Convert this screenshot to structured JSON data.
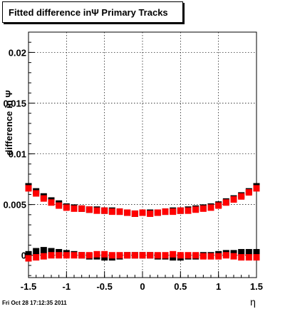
{
  "chart_data": {
    "type": "scatter",
    "title": "Fitted difference inΨ   Primary Tracks",
    "xlabel": "η",
    "ylabel": "difference in Ψ",
    "xlim": [
      -1.5,
      1.5
    ],
    "ylim": [
      -0.0022,
      0.022
    ],
    "x_ticks": [
      "-1.5",
      "-1",
      "-0.5",
      "0",
      "0.5",
      "1",
      "1.5"
    ],
    "y_ticks": [
      "0",
      "0.005",
      "0.01",
      "0.015",
      "0.02"
    ],
    "grid": true,
    "series": [
      {
        "color": "#000000",
        "points": [
          [
            -1.5,
            0.0068
          ],
          [
            -1.4,
            0.0063
          ],
          [
            -1.3,
            0.0058
          ],
          [
            -1.2,
            0.0054
          ],
          [
            -1.1,
            0.0051
          ],
          [
            -1.0,
            0.0048
          ],
          [
            -0.9,
            0.0047
          ],
          [
            -0.8,
            0.0046
          ],
          [
            -0.7,
            0.0045
          ],
          [
            -0.6,
            0.0045
          ],
          [
            -0.5,
            0.0044
          ],
          [
            -0.4,
            0.0044
          ],
          [
            -0.3,
            0.0043
          ],
          [
            -0.2,
            0.0042
          ],
          [
            -0.1,
            0.0041
          ],
          [
            0.0,
            0.0042
          ],
          [
            0.1,
            0.0042
          ],
          [
            0.2,
            0.0042
          ],
          [
            0.3,
            0.0043
          ],
          [
            0.4,
            0.0044
          ],
          [
            0.5,
            0.0044
          ],
          [
            0.6,
            0.0045
          ],
          [
            0.7,
            0.0046
          ],
          [
            0.8,
            0.0047
          ],
          [
            0.9,
            0.0048
          ],
          [
            1.0,
            0.005
          ],
          [
            1.1,
            0.0053
          ],
          [
            1.2,
            0.0056
          ],
          [
            1.3,
            0.0059
          ],
          [
            1.4,
            0.0063
          ],
          [
            1.5,
            0.0068
          ],
          [
            -1.5,
            0.0001
          ],
          [
            -1.4,
            0.0004
          ],
          [
            -1.3,
            0.0005
          ],
          [
            -1.2,
            0.0004
          ],
          [
            -1.1,
            0.0003
          ],
          [
            -1.0,
            0.0002
          ],
          [
            -0.9,
            0.0001
          ],
          [
            -0.8,
            0.0
          ],
          [
            -0.7,
            -0.0001
          ],
          [
            -0.6,
            -0.0001
          ],
          [
            -0.5,
            -0.0002
          ],
          [
            -0.4,
            -0.0002
          ],
          [
            -0.3,
            -0.0001
          ],
          [
            -0.2,
            0.0
          ],
          [
            -0.1,
            0.0
          ],
          [
            0.0,
            0.0
          ],
          [
            0.1,
            0.0
          ],
          [
            0.2,
            -0.0001
          ],
          [
            0.3,
            -0.0001
          ],
          [
            0.4,
            -0.0002
          ],
          [
            0.5,
            -0.0002
          ],
          [
            0.6,
            -0.0001
          ],
          [
            0.7,
            -0.0001
          ],
          [
            0.8,
            0.0
          ],
          [
            0.9,
            0.0
          ],
          [
            1.0,
            0.0001
          ],
          [
            1.1,
            0.0002
          ],
          [
            1.2,
            0.0002
          ],
          [
            1.3,
            0.0003
          ],
          [
            1.4,
            0.0003
          ],
          [
            1.5,
            0.0003
          ]
        ]
      },
      {
        "color": "#ff0000",
        "points": [
          [
            -1.5,
            0.0066
          ],
          [
            -1.4,
            0.0061
          ],
          [
            -1.3,
            0.0056
          ],
          [
            -1.2,
            0.0052
          ],
          [
            -1.1,
            0.0049
          ],
          [
            -1.0,
            0.0047
          ],
          [
            -0.9,
            0.0046
          ],
          [
            -0.8,
            0.0046
          ],
          [
            -0.7,
            0.0045
          ],
          [
            -0.6,
            0.0044
          ],
          [
            -0.5,
            0.0044
          ],
          [
            -0.4,
            0.0043
          ],
          [
            -0.3,
            0.0043
          ],
          [
            -0.2,
            0.0042
          ],
          [
            -0.1,
            0.0041
          ],
          [
            0.0,
            0.0042
          ],
          [
            0.1,
            0.0041
          ],
          [
            0.2,
            0.0042
          ],
          [
            0.3,
            0.0043
          ],
          [
            0.4,
            0.0043
          ],
          [
            0.5,
            0.0044
          ],
          [
            0.6,
            0.0044
          ],
          [
            0.7,
            0.0045
          ],
          [
            0.8,
            0.0046
          ],
          [
            0.9,
            0.0047
          ],
          [
            1.0,
            0.0049
          ],
          [
            1.1,
            0.0052
          ],
          [
            1.2,
            0.0055
          ],
          [
            1.3,
            0.0058
          ],
          [
            1.4,
            0.0062
          ],
          [
            1.5,
            0.0066
          ],
          [
            -1.5,
            -0.0003
          ],
          [
            -1.4,
            -0.0002
          ],
          [
            -1.3,
            -0.0001
          ],
          [
            -1.2,
            0.0
          ],
          [
            -1.1,
            0.0
          ],
          [
            -1.0,
            0.0
          ],
          [
            -0.9,
            0.0
          ],
          [
            -0.8,
            0.0
          ],
          [
            -0.7,
            0.0
          ],
          [
            -0.6,
            0.0001
          ],
          [
            -0.5,
            0.0001
          ],
          [
            -0.4,
            0.0
          ],
          [
            -0.3,
            0.0
          ],
          [
            -0.2,
            0.0
          ],
          [
            -0.1,
            0.0
          ],
          [
            0.0,
            0.0
          ],
          [
            0.1,
            0.0
          ],
          [
            0.2,
            0.0
          ],
          [
            0.3,
            0.0
          ],
          [
            0.4,
            0.0001
          ],
          [
            0.5,
            0.0
          ],
          [
            0.6,
            0.0
          ],
          [
            0.7,
            0.0
          ],
          [
            0.8,
            -0.0001
          ],
          [
            0.9,
            -0.0001
          ],
          [
            1.0,
            -0.0001
          ],
          [
            1.1,
            0.0
          ],
          [
            1.2,
            -0.0001
          ],
          [
            1.3,
            -0.0002
          ],
          [
            1.4,
            -0.0002
          ],
          [
            1.5,
            -0.0002
          ]
        ]
      }
    ]
  },
  "footer": {
    "timestamp": "Fri Oct 28 17:12:35 2011"
  }
}
